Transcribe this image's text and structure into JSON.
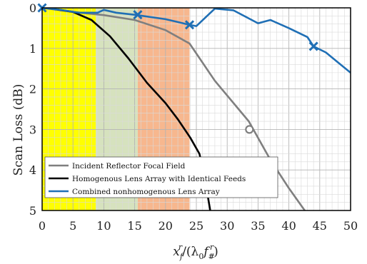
{
  "chart_data": {
    "type": "line",
    "xlabel_main": "x",
    "xlabel_sub": "f",
    "xlabel_sup": "r",
    "xlabel_rest": "/(λ",
    "xlabel_lam_sub": "0",
    "xlabel_f": "f",
    "xlabel_f_sub": "#",
    "xlabel_f_sup": "r",
    "xlabel_close": ")",
    "ylabel": "Scan Loss (dB)",
    "xlim": [
      0,
      50
    ],
    "ylim": [
      0,
      5
    ],
    "y_inverted": true,
    "grid": true,
    "minor_grid_step": 1,
    "xticks": [
      0,
      5,
      10,
      15,
      20,
      25,
      30,
      35,
      40,
      45,
      50
    ],
    "yticks": [
      0,
      1,
      2,
      3,
      4,
      5
    ],
    "shaded_regions": [
      {
        "x0": 0,
        "x1": 8.7,
        "color": "#ffff00"
      },
      {
        "x0": 8.7,
        "x1": 15.5,
        "color": "#d6e2be"
      },
      {
        "x0": 15.5,
        "x1": 23.9,
        "color": "#f7b78e"
      }
    ],
    "series": [
      {
        "name": "Incident Reflector Focal Field",
        "color": "#7f7f7f",
        "x": [
          0,
          5,
          10,
          15,
          20,
          23.9,
          28,
          33.5,
          37,
          40,
          42.8
        ],
        "y": [
          0,
          0.1,
          0.18,
          0.3,
          0.55,
          0.88,
          1.8,
          2.8,
          3.75,
          4.45,
          5.05
        ],
        "markers": [
          {
            "x": 33.6,
            "y": 3.0,
            "shape": "circle"
          }
        ]
      },
      {
        "name": "Homogenous Lens Array with Identical Feeds",
        "color": "#000000",
        "x": [
          0,
          2,
          5,
          8,
          11,
          14,
          17,
          20,
          22,
          24,
          25.5,
          26.2,
          26.8,
          27.3
        ],
        "y": [
          0,
          0.03,
          0.1,
          0.3,
          0.7,
          1.25,
          1.85,
          2.35,
          2.75,
          3.2,
          3.6,
          4.05,
          4.6,
          5.05
        ],
        "markers": []
      },
      {
        "name": "Combined nonhomogenous Lens Array",
        "color": "#1f6fb5",
        "x": [
          0,
          3,
          6,
          9,
          10,
          12,
          15,
          20,
          22,
          23.9,
          25,
          28,
          31,
          33,
          35,
          37,
          40,
          43,
          44,
          46,
          48,
          50
        ],
        "y": [
          0,
          0.05,
          0.12,
          0.12,
          0.05,
          0.12,
          0.17,
          0.28,
          0.35,
          0.42,
          0.45,
          0.02,
          0.06,
          0.22,
          0.38,
          0.3,
          0.5,
          0.72,
          0.95,
          1.1,
          1.35,
          1.6
        ],
        "markers": [
          {
            "x": 0,
            "y": 0,
            "shape": "x"
          },
          {
            "x": 15.5,
            "y": 0.17,
            "shape": "x"
          },
          {
            "x": 23.9,
            "y": 0.42,
            "shape": "x"
          },
          {
            "x": 44,
            "y": 0.95,
            "shape": "x"
          }
        ]
      }
    ],
    "legend_position": "bottom-left"
  }
}
